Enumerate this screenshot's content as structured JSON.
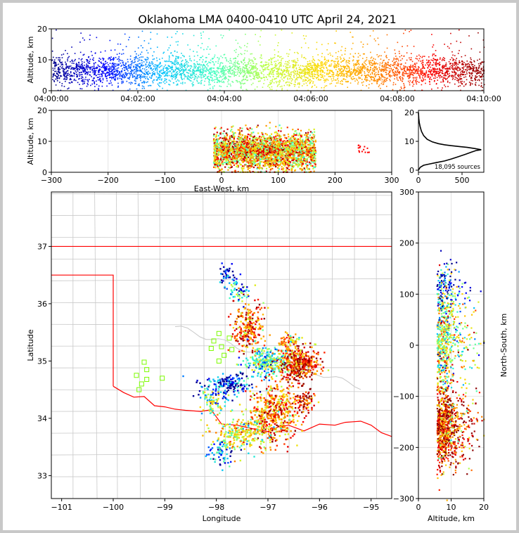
{
  "title": "Oklahoma LMA 0400-0410 UTC April 24, 2021",
  "chart_data": [
    {
      "panel": "altitude-vs-time",
      "type": "scatter",
      "ylabel": "Altitude, km",
      "ylim": [
        0,
        20
      ],
      "yticks": [
        "0",
        "10",
        "20"
      ],
      "xticks": [
        "04:00:00",
        "04:02:00",
        "04:04:00",
        "04:06:00",
        "04:08:00",
        "04:10:00"
      ],
      "xlim_minutes": [
        0,
        10
      ],
      "color_by": "time",
      "colormap": [
        "#00008b",
        "#0000ff",
        "#00bfff",
        "#40ffc0",
        "#c0ff40",
        "#ffd700",
        "#ff8c00",
        "#ff0000",
        "#8b0000"
      ]
    },
    {
      "panel": "altitude-vs-east-west",
      "type": "scatter",
      "xlabel": "East-West, km",
      "ylabel": "Altitude, km",
      "xlim": [
        -300,
        300
      ],
      "ylim": [
        0,
        20
      ],
      "xticks": [
        "−300",
        "−200",
        "−100",
        "0",
        "100",
        "200",
        "300"
      ],
      "yticks": [
        "0",
        "10",
        "20"
      ],
      "grid": true
    },
    {
      "panel": "altitude-histogram",
      "type": "line",
      "xlim": [
        0,
        750
      ],
      "ylim": [
        0,
        20
      ],
      "xticks": [
        "0",
        "500"
      ],
      "yticks": [
        "0",
        "10",
        "20"
      ],
      "annotation": "18,095 sources",
      "profile": [
        [
          0,
          0
        ],
        [
          20,
          1
        ],
        [
          60,
          1.7
        ],
        [
          120,
          2.1
        ],
        [
          200,
          2.6
        ],
        [
          300,
          3.2
        ],
        [
          380,
          3.9
        ],
        [
          460,
          4.7
        ],
        [
          540,
          5.5
        ],
        [
          610,
          6.3
        ],
        [
          660,
          6.8
        ],
        [
          720,
          7.1
        ],
        [
          650,
          7.5
        ],
        [
          560,
          7.9
        ],
        [
          470,
          8.2
        ],
        [
          380,
          8.5
        ],
        [
          300,
          8.8
        ],
        [
          230,
          9.2
        ],
        [
          160,
          9.8
        ],
        [
          100,
          10.7
        ],
        [
          60,
          12
        ],
        [
          35,
          13.5
        ],
        [
          20,
          15
        ],
        [
          10,
          16.5
        ],
        [
          4,
          18
        ],
        [
          0,
          20
        ]
      ]
    },
    {
      "panel": "plan-view-map",
      "type": "scatter",
      "xlabel": "Longitude",
      "ylabel": "Latitude",
      "xlim": [
        -101.2,
        -94.6
      ],
      "ylim": [
        32.6,
        37.95
      ],
      "xticks": [
        "−101",
        "−100",
        "−99",
        "−98",
        "−97",
        "−96",
        "−95"
      ],
      "yticks": [
        "33",
        "34",
        "35",
        "36",
        "37"
      ],
      "state_border_color": "#ff0000",
      "county_line_color": "#c8c8c8",
      "station_marker_color": "#7cfc00"
    },
    {
      "panel": "north-south-vs-altitude",
      "type": "scatter",
      "xlabel": "Altitude, km",
      "ylabel": "North-South, km",
      "xlim": [
        0,
        20
      ],
      "ylim": [
        -300,
        300
      ],
      "xticks": [
        "0",
        "10",
        "20"
      ],
      "yticks": [
        "−300",
        "−200",
        "−100",
        "0",
        "100",
        "200",
        "300"
      ],
      "grid": true
    }
  ]
}
